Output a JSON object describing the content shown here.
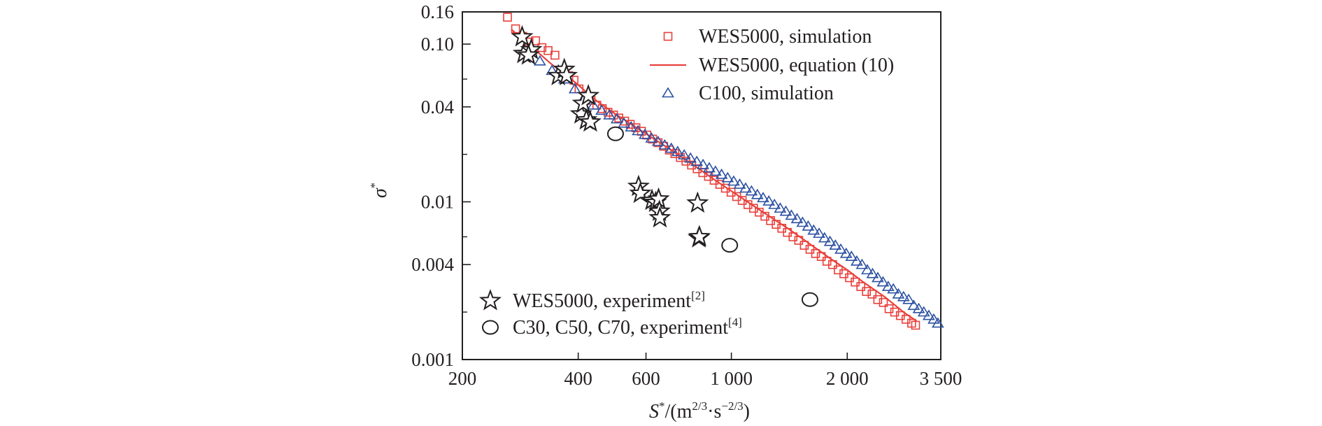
{
  "chart_data": {
    "type": "scatter",
    "scale": {
      "x": "log",
      "y": "log"
    },
    "xlim": [
      200,
      3500
    ],
    "ylim": [
      0.001,
      0.16
    ],
    "x_ticks": [
      {
        "value": 200,
        "label": "200"
      },
      {
        "value": 400,
        "label": "400"
      },
      {
        "value": 600,
        "label": "600"
      },
      {
        "value": 1000,
        "label": "1 000"
      },
      {
        "value": 2000,
        "label": "2 000"
      },
      {
        "value": 3500,
        "label": "3 500"
      }
    ],
    "y_ticks": [
      {
        "value": 0.001,
        "label": "0.001"
      },
      {
        "value": 0.004,
        "label": "0.004"
      },
      {
        "value": 0.01,
        "label": "0.01"
      },
      {
        "value": 0.04,
        "label": "0.04"
      },
      {
        "value": 0.1,
        "label": "0.10"
      },
      {
        "value": 0.16,
        "label": "0.16"
      }
    ],
    "y_minor_ticks": [
      0.002,
      0.006,
      0.02,
      0.06
    ],
    "xlabel": {
      "base": "S",
      "sup1": "*",
      "middle": "/(m",
      "sup2": "2/3",
      "dot": "·s",
      "sup3": "−2/3",
      "end": ")"
    },
    "ylabel": {
      "base": "σ",
      "sup": "*"
    },
    "grid": false,
    "legends": [
      {
        "placement": "top-right",
        "entries": [
          {
            "series": 0,
            "label": "WES5000, simulation"
          },
          {
            "series": 1,
            "label": "WES5000, equation (10)"
          },
          {
            "series": 2,
            "label": "C100, simulation"
          }
        ]
      },
      {
        "placement": "bottom-left",
        "entries": [
          {
            "series": 3,
            "label": "WES5000, experiment",
            "ref": "[2]"
          },
          {
            "series": 4,
            "label": "C30, C50, C70, experiment",
            "ref": "[4]"
          }
        ]
      }
    ],
    "series": [
      {
        "name": "WES5000, simulation",
        "marker": "square",
        "color": "#e8413c",
        "points": [
          [
            262,
            0.148
          ],
          [
            275,
            0.125
          ],
          [
            287,
            0.112
          ],
          [
            298,
            0.103
          ],
          [
            310,
            0.105
          ],
          [
            322,
            0.095
          ],
          [
            334,
            0.091
          ],
          [
            348,
            0.085
          ],
          [
            362,
            0.068
          ],
          [
            378,
            0.063
          ],
          [
            390,
            0.059
          ],
          [
            402,
            0.052
          ],
          [
            418,
            0.047
          ],
          [
            432,
            0.044
          ],
          [
            447,
            0.041
          ],
          [
            462,
            0.039
          ],
          [
            478,
            0.037
          ],
          [
            494,
            0.0355
          ],
          [
            510,
            0.034
          ],
          [
            528,
            0.0325
          ],
          [
            546,
            0.031
          ],
          [
            565,
            0.0295
          ],
          [
            584,
            0.028
          ],
          [
            603,
            0.0265
          ],
          [
            624,
            0.025
          ],
          [
            645,
            0.0237
          ],
          [
            667,
            0.0225
          ],
          [
            690,
            0.0213
          ],
          [
            713,
            0.0202
          ],
          [
            737,
            0.0191
          ],
          [
            762,
            0.0181
          ],
          [
            788,
            0.0171
          ],
          [
            815,
            0.0162
          ],
          [
            843,
            0.0153
          ],
          [
            872,
            0.0145
          ],
          [
            902,
            0.0137
          ],
          [
            933,
            0.0129
          ],
          [
            965,
            0.0122
          ],
          [
            998,
            0.0115
          ],
          [
            1032,
            0.0108
          ],
          [
            1067,
            0.0102
          ],
          [
            1104,
            0.0096
          ],
          [
            1142,
            0.0091
          ],
          [
            1181,
            0.0086
          ],
          [
            1222,
            0.0081
          ],
          [
            1264,
            0.0076
          ],
          [
            1307,
            0.0072
          ],
          [
            1352,
            0.0068
          ],
          [
            1398,
            0.0064
          ],
          [
            1446,
            0.006
          ],
          [
            1496,
            0.0057
          ],
          [
            1547,
            0.0053
          ],
          [
            1600,
            0.005
          ],
          [
            1655,
            0.0047
          ],
          [
            1712,
            0.0045
          ],
          [
            1771,
            0.0042
          ],
          [
            1832,
            0.004
          ],
          [
            1895,
            0.0037
          ],
          [
            1960,
            0.0035
          ],
          [
            2027,
            0.0033
          ],
          [
            2097,
            0.0031
          ],
          [
            2169,
            0.0029
          ],
          [
            2243,
            0.0027
          ],
          [
            2320,
            0.0026
          ],
          [
            2400,
            0.0024
          ],
          [
            2483,
            0.0023
          ],
          [
            2568,
            0.0021
          ],
          [
            2656,
            0.002
          ],
          [
            2748,
            0.0019
          ],
          [
            2842,
            0.0018
          ],
          [
            2940,
            0.0017
          ],
          [
            3010,
            0.00165
          ]
        ]
      },
      {
        "name": "WES5000, equation (10)",
        "marker": "line",
        "color": "#e8413c",
        "points": [
          [
            268,
            0.124
          ],
          [
            300,
            0.098
          ],
          [
            340,
            0.075
          ],
          [
            390,
            0.058
          ],
          [
            450,
            0.043
          ],
          [
            500,
            0.036
          ],
          [
            600,
            0.027
          ],
          [
            700,
            0.0212
          ],
          [
            800,
            0.017
          ],
          [
            900,
            0.0139
          ],
          [
            1000,
            0.0117
          ],
          [
            1200,
            0.0087
          ],
          [
            1400,
            0.0068
          ],
          [
            1600,
            0.0054
          ],
          [
            1800,
            0.0044
          ],
          [
            2000,
            0.0037
          ],
          [
            2200,
            0.0031
          ],
          [
            2500,
            0.0025
          ],
          [
            2800,
            0.002
          ],
          [
            3030,
            0.00175
          ]
        ]
      },
      {
        "name": "C100, simulation",
        "marker": "triangle",
        "color": "#2e52a3",
        "points": [
          [
            318,
            0.078
          ],
          [
            342,
            0.068
          ],
          [
            368,
            0.06
          ],
          [
            392,
            0.052
          ],
          [
            415,
            0.046
          ],
          [
            438,
            0.041
          ],
          [
            460,
            0.038
          ],
          [
            482,
            0.0355
          ],
          [
            504,
            0.0335
          ],
          [
            526,
            0.0315
          ],
          [
            549,
            0.0298
          ],
          [
            572,
            0.0282
          ],
          [
            596,
            0.0267
          ],
          [
            620,
            0.0253
          ],
          [
            645,
            0.0241
          ],
          [
            671,
            0.0229
          ],
          [
            698,
            0.0218
          ],
          [
            725,
            0.0208
          ],
          [
            754,
            0.0198
          ],
          [
            783,
            0.0189
          ],
          [
            813,
            0.018
          ],
          [
            844,
            0.0172
          ],
          [
            876,
            0.0164
          ],
          [
            909,
            0.0156
          ],
          [
            943,
            0.0149
          ],
          [
            978,
            0.0142
          ],
          [
            1014,
            0.0135
          ],
          [
            1051,
            0.0129
          ],
          [
            1089,
            0.0122
          ],
          [
            1128,
            0.0117
          ],
          [
            1168,
            0.0111
          ],
          [
            1209,
            0.0106
          ],
          [
            1251,
            0.0101
          ],
          [
            1294,
            0.0096
          ],
          [
            1339,
            0.0091
          ],
          [
            1385,
            0.0087
          ],
          [
            1432,
            0.0082
          ],
          [
            1481,
            0.0078
          ],
          [
            1531,
            0.0074
          ],
          [
            1583,
            0.007
          ],
          [
            1636,
            0.0066
          ],
          [
            1690,
            0.0063
          ],
          [
            1746,
            0.0059
          ],
          [
            1804,
            0.0056
          ],
          [
            1863,
            0.0053
          ],
          [
            1924,
            0.005
          ],
          [
            1987,
            0.0047
          ],
          [
            2051,
            0.0045
          ],
          [
            2117,
            0.0042
          ],
          [
            2185,
            0.004
          ],
          [
            2255,
            0.0037
          ],
          [
            2327,
            0.0035
          ],
          [
            2401,
            0.0033
          ],
          [
            2477,
            0.0031
          ],
          [
            2555,
            0.0029
          ],
          [
            2635,
            0.0028
          ],
          [
            2717,
            0.0026
          ],
          [
            2801,
            0.0025
          ],
          [
            2888,
            0.0024
          ],
          [
            2977,
            0.0022
          ],
          [
            3068,
            0.0021
          ],
          [
            3162,
            0.002
          ],
          [
            3258,
            0.0019
          ],
          [
            3356,
            0.0018
          ],
          [
            3440,
            0.0017
          ]
        ]
      },
      {
        "name": "WES5000, experiment",
        "marker": "star",
        "color": "#231f20",
        "points": [
          [
            286,
            0.111
          ],
          [
            289,
            0.087
          ],
          [
            302,
            0.092
          ],
          [
            297,
            0.085
          ],
          [
            355,
            0.063
          ],
          [
            368,
            0.069
          ],
          [
            373,
            0.063
          ],
          [
            407,
            0.036
          ],
          [
            412,
            0.042
          ],
          [
            425,
            0.047
          ],
          [
            420,
            0.033
          ],
          [
            430,
            0.032
          ],
          [
            574,
            0.0125
          ],
          [
            580,
            0.0113
          ],
          [
            622,
            0.0102
          ],
          [
            636,
            0.0099
          ],
          [
            647,
            0.0104
          ],
          [
            650,
            0.0087
          ],
          [
            652,
            0.0079
          ],
          [
            817,
            0.0098
          ],
          [
            823,
            0.0059
          ],
          [
            826,
            0.006
          ]
        ]
      },
      {
        "name": "C30, C50, C70, experiment",
        "marker": "circle",
        "color": "#231f20",
        "points": [
          [
            500,
            0.027
          ],
          [
            990,
            0.0053
          ],
          [
            1600,
            0.0024
          ]
        ]
      }
    ]
  }
}
